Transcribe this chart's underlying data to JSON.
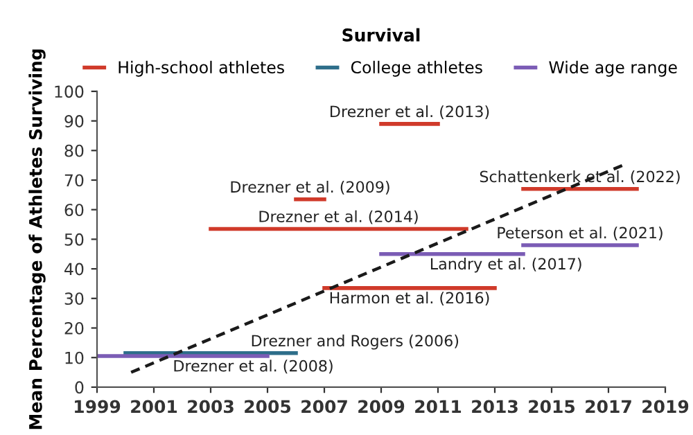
{
  "chart_data": {
    "type": "line",
    "title": "Survival",
    "ylabel": "Mean Percentage of Athletes Surviving",
    "xlim": [
      1999,
      2019
    ],
    "xticks": [
      1999,
      2001,
      2003,
      2005,
      2007,
      2009,
      2011,
      2013,
      2015,
      2017,
      2019
    ],
    "ylim": [
      0,
      100
    ],
    "yticks": [
      0,
      10,
      20,
      30,
      40,
      50,
      60,
      70,
      80,
      90,
      100
    ],
    "grid": false,
    "legend": "top",
    "marker": "none",
    "series": [
      {
        "name": "High-school athletes",
        "color": "#d03a2a",
        "x": [
          2009,
          2011,
          null,
          2006,
          2007,
          null,
          2014,
          2018,
          null,
          2003,
          2012,
          null,
          2007,
          2013
        ],
        "values": [
          89,
          89,
          null,
          63.5,
          63.5,
          null,
          67,
          67,
          null,
          53.5,
          53.5,
          null,
          33.5,
          33.5
        ]
      },
      {
        "name": "College athletes",
        "color": "#2e6e8a",
        "x": [
          2000,
          2006
        ],
        "values": [
          11.5,
          11.5
        ]
      },
      {
        "name": "Wide age range",
        "color": "#7b5cb5",
        "x": [
          2014,
          2018,
          null,
          2009,
          2014,
          null,
          1999,
          2005
        ],
        "values": [
          48,
          48,
          null,
          45,
          45,
          null,
          10.5,
          10.5
        ]
      },
      {
        "color": "#1a1a1a",
        "line_style": "dashed",
        "x": [
          2000.2,
          2017.5
        ],
        "values": [
          5,
          75
        ]
      }
    ],
    "annotations": [
      {
        "text": "Drezner et al. (2013)",
        "x": 2010,
        "y": 89
      },
      {
        "text": "Drezner et al. (2009)",
        "x": 2006.5,
        "y": 63.5
      },
      {
        "text": "Schattenkerk et al. (2022)",
        "x": 2016,
        "y": 67
      },
      {
        "text": "Drezner et al. (2014)",
        "x": 2007.5,
        "y": 53.5
      },
      {
        "text": "Peterson et al. (2021)",
        "x": 2016,
        "y": 48
      },
      {
        "text": "Landry et al. (2017)",
        "x": 2011.5,
        "y": 45
      },
      {
        "text": "Harmon et al. (2016)",
        "x": 2010,
        "y": 33.5
      },
      {
        "text": "Drezner et al. (2008)",
        "x": 2004.5,
        "y": 10.5
      },
      {
        "text": "Drezner and Rogers (2006)",
        "x": 2005.5,
        "y": 11.5
      }
    ]
  }
}
